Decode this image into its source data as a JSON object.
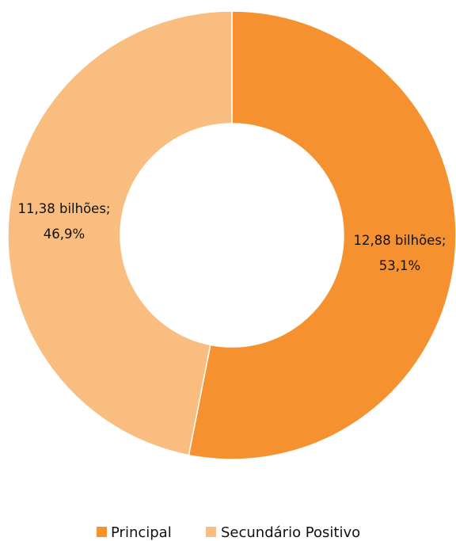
{
  "chart_data": {
    "type": "pie",
    "variant": "donut",
    "title": "",
    "series": [
      {
        "name": "Principal",
        "value": 12.88,
        "percent": 53.1,
        "value_label": "12,88 bilhões;",
        "percent_label": "53,1%",
        "color": "#F5922F"
      },
      {
        "name": "Secundário Positivo",
        "value": 11.38,
        "percent": 46.9,
        "value_label": "11,38 bilhões;",
        "percent_label": "46,9%",
        "color": "#F9BE7F"
      }
    ],
    "start_angle": "12 o'clock",
    "direction": "clockwise",
    "legend": {
      "position": "bottom"
    }
  }
}
